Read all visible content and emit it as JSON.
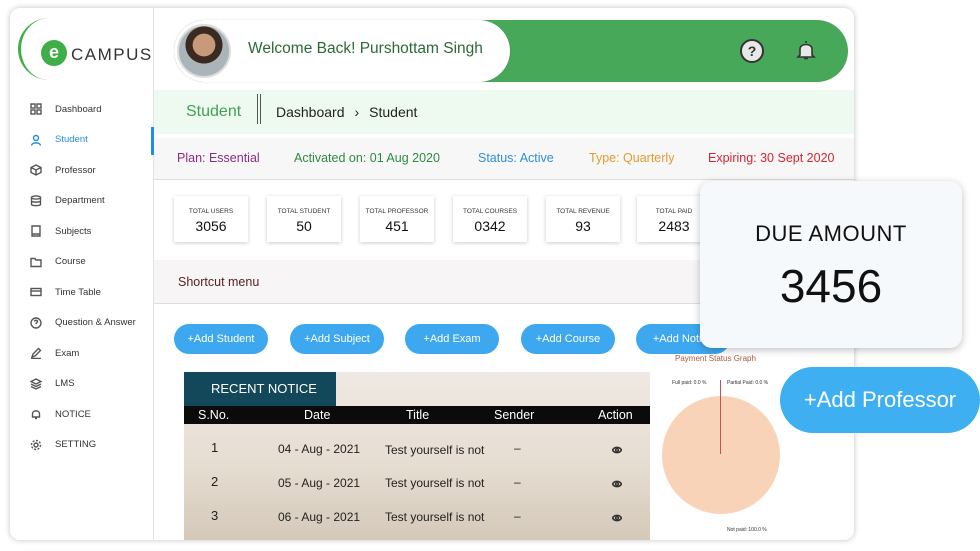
{
  "logo": {
    "badge": "e",
    "text": "CAMPUS"
  },
  "sidebar": {
    "items": [
      {
        "label": "Dashboard",
        "icon": "grid-icon"
      },
      {
        "label": "Student",
        "icon": "user-icon",
        "active": true
      },
      {
        "label": "Professor",
        "icon": "cube-icon"
      },
      {
        "label": "Department",
        "icon": "database-icon"
      },
      {
        "label": "Subjects",
        "icon": "book-icon"
      },
      {
        "label": "Course",
        "icon": "folder-icon"
      },
      {
        "label": "Time Table",
        "icon": "card-icon"
      },
      {
        "label": "Question & Answer",
        "icon": "help-circle-icon"
      },
      {
        "label": "Exam",
        "icon": "pen-icon"
      },
      {
        "label": "LMS",
        "icon": "layers-icon"
      },
      {
        "label": "NOTICE",
        "icon": "bell-icon"
      },
      {
        "label": "SETTING",
        "icon": "gear-icon"
      }
    ]
  },
  "header": {
    "welcome": "Welcome Back! Purshottam Singh",
    "help_glyph": "?"
  },
  "breadcrumb": {
    "title": "Student",
    "path": [
      "Dashboard",
      "Student"
    ],
    "chevron": "›"
  },
  "plan": {
    "plan": "Plan: Essential",
    "activated": "Activated on: 01 Aug 2020",
    "status": "Status: Active",
    "type": "Type: Quarterly",
    "expiring": "Expiring: 30 Sept 2020"
  },
  "stats": [
    {
      "label": "TOTAL USERS",
      "value": "3056"
    },
    {
      "label": "TOTAL STUDENT",
      "value": "50"
    },
    {
      "label": "TOTAL PROFESSOR",
      "value": "451"
    },
    {
      "label": "TOTAL COURSES",
      "value": "0342"
    },
    {
      "label": "TOTAL REVENUE",
      "value": "93"
    },
    {
      "label": "TOTAL PAID",
      "value": "2483"
    }
  ],
  "shortcut": {
    "label": "Shortcut menu",
    "buttons": [
      "+Add Student",
      "+Add Subject",
      "+Add Exam",
      "+Add Course",
      "+Add Notice"
    ]
  },
  "notice": {
    "tab": "RECENT NOTICE",
    "columns": [
      "S.No.",
      "Date",
      "Title",
      "Sender",
      "Action"
    ],
    "rows": [
      {
        "sno": "1",
        "date": "04 - Aug - 2021",
        "title": "Test yourself is not",
        "sender": "–"
      },
      {
        "sno": "2",
        "date": "05 - Aug - 2021",
        "title": "Test yourself is not",
        "sender": "–"
      },
      {
        "sno": "3",
        "date": "06 - Aug - 2021",
        "title": "Test yourself is not",
        "sender": "–"
      }
    ]
  },
  "graph": {
    "title": "Payment Status Graph",
    "full_paid": "Full paid: 0.0 %",
    "partial_paid": "Partial Paid: 0.0 %",
    "not_paid": "Not paid: 100.0 %"
  },
  "due": {
    "label": "DUE AMOUNT",
    "value": "3456"
  },
  "add_professor": "+Add Professor",
  "colors": {
    "green": "#47a85a",
    "blue": "#3da8ef",
    "notice_tab": "#12485a"
  }
}
